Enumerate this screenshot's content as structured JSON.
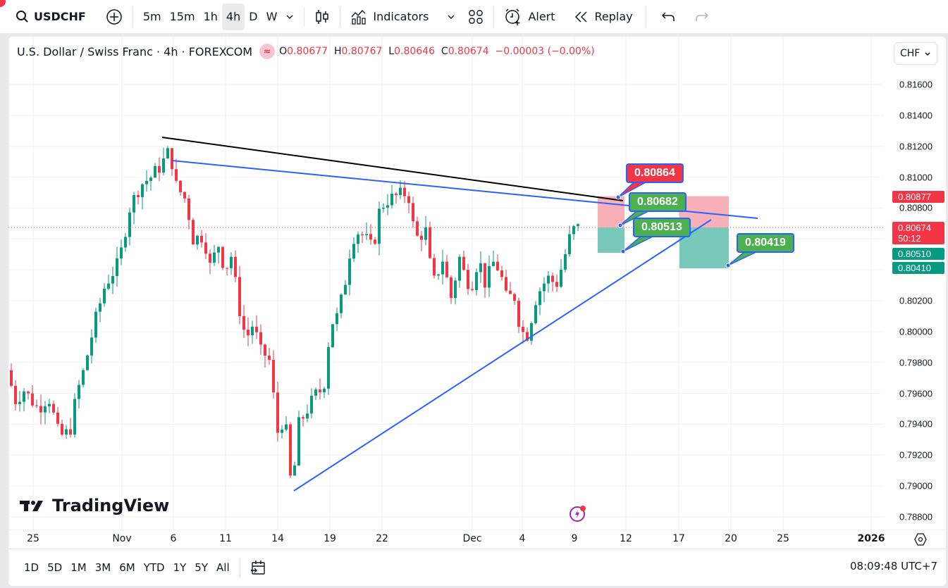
{
  "toolbar": {
    "symbol": "USDCHF",
    "intervals": [
      "5m",
      "15m",
      "1h",
      "4h",
      "D",
      "W"
    ],
    "active_interval": "4h",
    "indicators_label": "Indicators",
    "alert_label": "Alert",
    "replay_label": "Replay"
  },
  "legend": {
    "title": "U.S. Dollar / Swiss Franc · 4h · FOREXCOM",
    "o_key": "O",
    "o": "0.80677",
    "h_key": "H",
    "h": "0.80767",
    "l_key": "L",
    "l": "0.80646",
    "c_key": "C",
    "c": "0.80674",
    "change": "−0.00003 (−0.00%)"
  },
  "currency_select": "CHF",
  "price_axis": {
    "ticks": [
      "0.81600",
      "0.81400",
      "0.81200",
      "0.81000",
      "0.80800",
      "0.80200",
      "0.80000",
      "0.79800",
      "0.79600",
      "0.79400",
      "0.79200",
      "0.79000",
      "0.78800"
    ],
    "tags": [
      {
        "value": "0.80877",
        "color": "#f23645"
      },
      {
        "value": "0.80674",
        "sub": "50:12",
        "color": "#f23645"
      },
      {
        "value": "0.80510",
        "color": "#089981"
      },
      {
        "value": "0.80410",
        "color": "#089981"
      }
    ]
  },
  "time_axis": {
    "labels": [
      "25",
      "Nov",
      "6",
      "11",
      "14",
      "19",
      "22",
      "Dec",
      "4",
      "9",
      "12",
      "17",
      "20",
      "25",
      "2026"
    ]
  },
  "callouts": [
    {
      "value": "0.80864",
      "color": "#f23645"
    },
    {
      "value": "0.80682",
      "color": "#4caf50"
    },
    {
      "value": "0.80513",
      "color": "#4caf50"
    },
    {
      "value": "0.80419",
      "color": "#4caf50"
    }
  ],
  "bottombar": {
    "ranges": [
      "1D",
      "5D",
      "1M",
      "3M",
      "6M",
      "YTD",
      "1Y",
      "5Y",
      "All"
    ],
    "clock": "08:09:48 UTC+7"
  },
  "branding": "TradingView",
  "colors": {
    "up": "#089981",
    "down": "#f23645",
    "trendline_blue": "#2962ff",
    "trendline_black": "#000000",
    "stop_zone": "#f7a9b0",
    "target_zone": "#71c6b6"
  },
  "chart_data": {
    "type": "candlestick",
    "title": "U.S. Dollar / Swiss Franc · 4h · FOREXCOM",
    "ylim": [
      0.7876,
      0.8175
    ],
    "last_price": 0.80674,
    "swing_points": [
      {
        "label": "start ~Oct 23",
        "price": 0.7975
      },
      {
        "label": "low ~Oct 30",
        "price": 0.7928
      },
      {
        "label": "high Nov 5-6",
        "price": 0.8123
      },
      {
        "label": "low Nov 14",
        "price": 0.788
      },
      {
        "label": "high Nov 21-24",
        "price": 0.81
      },
      {
        "label": "low Dec 4-5",
        "price": 0.7995
      },
      {
        "label": "high Dec 9",
        "price": 0.8085
      },
      {
        "label": "last Dec 9",
        "price": 0.80674
      }
    ],
    "trendlines": [
      {
        "color": "black",
        "from_price": 0.8126,
        "to_price": 0.8085
      },
      {
        "color": "blue",
        "from_price": 0.8111,
        "to_price": 0.8075
      },
      {
        "color": "blue",
        "from_price": 0.7896,
        "to_price": 0.8072
      }
    ],
    "positions": [
      {
        "stop": 0.80864,
        "entry": 0.80682,
        "target": 0.80513
      },
      {
        "stop": 0.80877,
        "entry": 0.80674,
        "target": 0.80419
      }
    ]
  }
}
